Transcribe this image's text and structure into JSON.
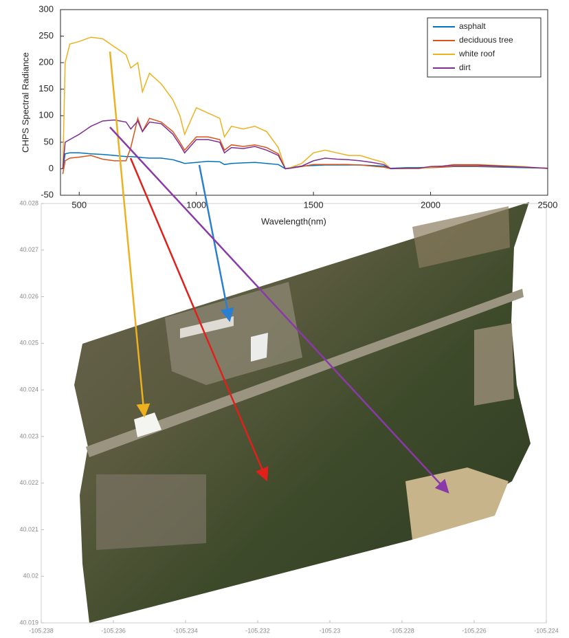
{
  "chart_data": [
    {
      "type": "line",
      "y_label": "CHPS Spectral Radiance",
      "x_label": "Wavelength(nm)",
      "x": [
        430,
        440,
        460,
        500,
        550,
        600,
        650,
        700,
        720,
        750,
        770,
        800,
        850,
        900,
        930,
        950,
        1000,
        1050,
        1100,
        1120,
        1150,
        1200,
        1250,
        1300,
        1350,
        1380,
        1400,
        1450,
        1500,
        1550,
        1600,
        1650,
        1700,
        1750,
        1800,
        1830,
        1900,
        1950,
        2000,
        2050,
        2100,
        2150,
        2200,
        2300,
        2400,
        2500
      ],
      "series": [
        {
          "name": "asphalt",
          "color": "#0072bd",
          "values": [
            0,
            28,
            30,
            30,
            28,
            27,
            25,
            23,
            23,
            22,
            21,
            20,
            20,
            17,
            13,
            10,
            12,
            14,
            13,
            8,
            10,
            11,
            12,
            10,
            8,
            0,
            2,
            5,
            6,
            7,
            7,
            7,
            7,
            6,
            5,
            1,
            2,
            2,
            3,
            3,
            4,
            4,
            4,
            3,
            2,
            1
          ]
        },
        {
          "name": "deciduous tree",
          "color": "#d95319",
          "values": [
            -10,
            15,
            20,
            22,
            25,
            18,
            15,
            15,
            40,
            95,
            70,
            95,
            88,
            70,
            50,
            35,
            60,
            60,
            55,
            35,
            45,
            42,
            45,
            40,
            28,
            0,
            1,
            4,
            8,
            8,
            8,
            8,
            7,
            5,
            3,
            0,
            1,
            1,
            2,
            3,
            5,
            5,
            5,
            4,
            3,
            1
          ]
        },
        {
          "name": "white roof",
          "color": "#edb120",
          "values": [
            0,
            200,
            235,
            240,
            248,
            245,
            230,
            215,
            190,
            200,
            145,
            180,
            160,
            130,
            100,
            65,
            115,
            105,
            95,
            60,
            80,
            75,
            80,
            70,
            40,
            0,
            2,
            10,
            30,
            35,
            30,
            25,
            25,
            18,
            12,
            0,
            0,
            0,
            3,
            5,
            8,
            8,
            8,
            6,
            4,
            0
          ]
        },
        {
          "name": "dirt",
          "color": "#7e2f8e",
          "values": [
            0,
            50,
            55,
            65,
            80,
            90,
            92,
            88,
            75,
            90,
            70,
            88,
            85,
            65,
            45,
            30,
            55,
            55,
            50,
            30,
            40,
            38,
            42,
            35,
            25,
            0,
            1,
            5,
            15,
            20,
            18,
            17,
            15,
            12,
            8,
            0,
            1,
            1,
            4,
            5,
            7,
            7,
            7,
            5,
            3,
            1
          ]
        }
      ],
      "xlim": [
        420,
        2500
      ],
      "xticks": [
        500,
        1000,
        1500,
        2000,
        2500
      ],
      "ylim": [
        -50,
        300
      ],
      "yticks": [
        -50,
        0,
        50,
        100,
        150,
        200,
        250,
        300
      ],
      "legend": "upper right"
    },
    {
      "type": "image",
      "xlim": [
        -105.238,
        -105.224
      ],
      "xticks": [
        -105.238,
        -105.236,
        -105.234,
        -105.232,
        -105.23,
        -105.228,
        -105.226,
        -105.224
      ],
      "ylim": [
        40.019,
        40.028
      ],
      "yticks": [
        40.019,
        40.02,
        40.021,
        40.022,
        40.023,
        40.024,
        40.025,
        40.026,
        40.027,
        40.028
      ]
    }
  ]
}
